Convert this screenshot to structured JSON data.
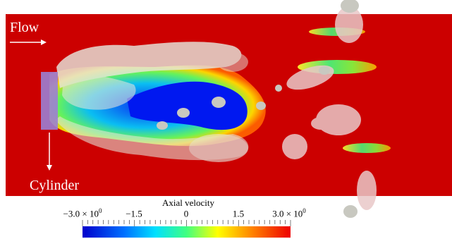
{
  "labels": {
    "flow": "Flow",
    "cylinder": "Cylinder"
  },
  "colorbar": {
    "title": "Axial velocity",
    "ticks": [
      {
        "base": "−3.0 × 10",
        "exp": "0"
      },
      {
        "base": "−1.5",
        "exp": ""
      },
      {
        "base": "0",
        "exp": ""
      },
      {
        "base": "1.5",
        "exp": ""
      },
      {
        "base": "3.0 × 10",
        "exp": "0"
      }
    ],
    "range": [
      -3.0,
      3.0
    ],
    "colormap": [
      "#0000cc",
      "#0080ff",
      "#00e0ff",
      "#40ff80",
      "#ffff00",
      "#ff8000",
      "#ff0000"
    ]
  },
  "colors": {
    "background_field": "#cc0000",
    "isosurface": "#e8e8e0",
    "negative_core": "#0020ff",
    "cylinder": "#9b7fd4"
  }
}
